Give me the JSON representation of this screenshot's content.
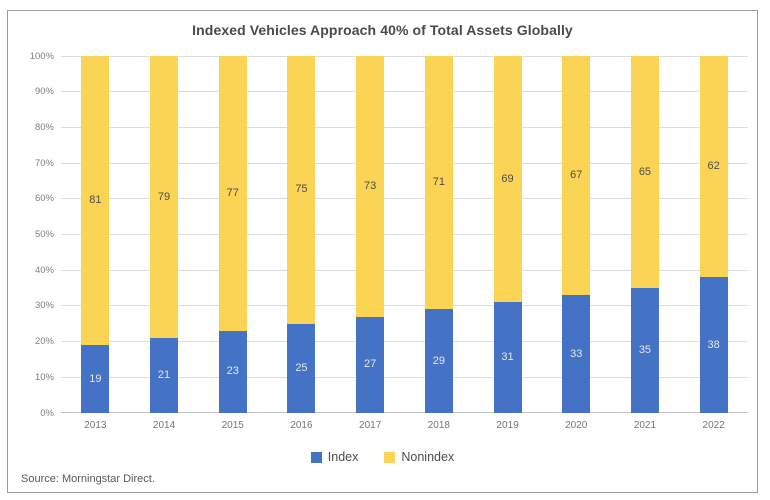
{
  "frame": {
    "title": "Indexed Vehicles Approach 40% of Total Assets Globally",
    "source": "Source: Morningstar Direct."
  },
  "colors": {
    "index_blue": "#4472C4",
    "nonindex_yellow": "#FBD455",
    "label_on_blue": "#dfe7f4",
    "label_on_yellow": "#4d4d4d",
    "gridline": "#dcdcdc",
    "axis_text": "#7f7f7f"
  },
  "chart_data": {
    "type": "bar",
    "stacked": true,
    "title": "Indexed Vehicles Approach 40% of Total Assets Globally",
    "categories": [
      "2013",
      "2014",
      "2015",
      "2016",
      "2017",
      "2018",
      "2019",
      "2020",
      "2021",
      "2022"
    ],
    "series": [
      {
        "name": "Index",
        "color": "#4472C4",
        "label_color": "#dfe7f4",
        "values": [
          19,
          21,
          23,
          25,
          27,
          29,
          31,
          33,
          35,
          38
        ]
      },
      {
        "name": "Nonindex",
        "color": "#FBD455",
        "label_color": "#4d4d4d",
        "values": [
          81,
          79,
          77,
          75,
          73,
          71,
          69,
          67,
          65,
          62
        ]
      }
    ],
    "xlabel": "",
    "ylabel": "",
    "ylim": [
      0,
      100
    ],
    "ytick_step": 10,
    "ytick_suffix": "%",
    "grid": true,
    "legend_position": "bottom",
    "bar_value_labels": "centered-in-segment"
  }
}
